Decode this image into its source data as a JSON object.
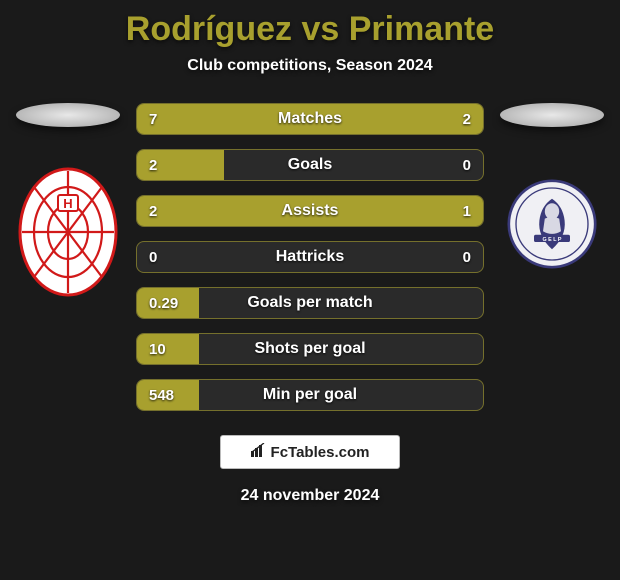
{
  "header": {
    "title": "Rodríguez vs Primante",
    "subtitle": "Club competitions, Season 2024"
  },
  "players": {
    "left": {
      "crest_name": "huracan-crest",
      "crest_bg": "#ffffff",
      "crest_fg": "#d11919"
    },
    "right": {
      "crest_name": "gimnasia-crest",
      "crest_bg": "#f0f0f4",
      "crest_fg": "#3a3a7a"
    }
  },
  "stats": {
    "bar_color": "#a8a02e",
    "bar_border": "rgba(168,160,46,0.6)",
    "track_color": "#2a2a2a",
    "label_color": "#ffffff",
    "label_fontsize": 16,
    "value_fontsize": 15,
    "rows": [
      {
        "label": "Matches",
        "left": "7",
        "right": "2",
        "left_pct": 78,
        "right_pct": 22
      },
      {
        "label": "Goals",
        "left": "2",
        "right": "0",
        "left_pct": 25,
        "right_pct": 0
      },
      {
        "label": "Assists",
        "left": "2",
        "right": "1",
        "left_pct": 67,
        "right_pct": 33
      },
      {
        "label": "Hattricks",
        "left": "0",
        "right": "0",
        "left_pct": 0,
        "right_pct": 0
      },
      {
        "label": "Goals per match",
        "left": "0.29",
        "right": "",
        "left_pct": 18,
        "right_pct": 0
      },
      {
        "label": "Shots per goal",
        "left": "10",
        "right": "",
        "left_pct": 18,
        "right_pct": 0
      },
      {
        "label": "Min per goal",
        "left": "548",
        "right": "",
        "left_pct": 18,
        "right_pct": 0
      }
    ]
  },
  "footer": {
    "site_label": "FcTables.com",
    "date": "24 november 2024"
  },
  "theme": {
    "background": "#1a1a1a",
    "title_color": "#a8a02e",
    "text_color": "#ffffff"
  }
}
